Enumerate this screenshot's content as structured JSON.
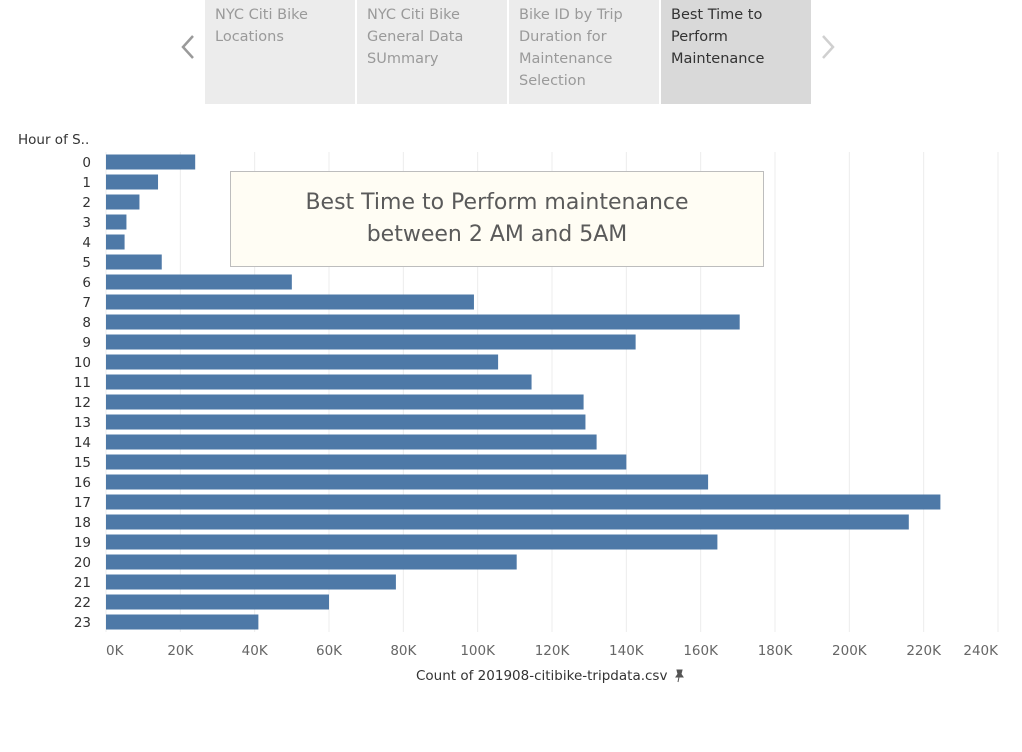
{
  "navigation": {
    "tabs": [
      {
        "label": "NYC Citi Bike Locations",
        "lines": [
          "NYC Citi Bike",
          "Locations"
        ],
        "active": false
      },
      {
        "label": "NYC Citi Bike General Data SUmmary",
        "lines": [
          "NYC Citi Bike",
          "General Data",
          "SUmmary"
        ],
        "active": false
      },
      {
        "label": "Bike ID by Trip Duration for Maintenance Selection",
        "lines": [
          "Bike ID by Trip",
          "Duration for",
          "Maintenance",
          "Selection"
        ],
        "active": false
      },
      {
        "label": "Best Time to Perform Maintenance",
        "lines": [
          "Best Time to",
          "Perform",
          "Maintenance"
        ],
        "active": true
      }
    ],
    "prev_icon": "chevron-left-icon",
    "next_icon": "chevron-right-icon"
  },
  "annotation": {
    "line1": "Best Time to Perform maintenance",
    "line2": "between 2 AM and 5AM"
  },
  "colors": {
    "bar": "#4e79a7",
    "grid": "#ececec",
    "tick_text": "#666666"
  },
  "chart_data": {
    "type": "bar",
    "orientation": "horizontal",
    "ylabel": "Hour of S..",
    "xlabel": "Count of 201908-citibike-tripdata.csv",
    "categories": [
      "0",
      "1",
      "2",
      "3",
      "4",
      "5",
      "6",
      "7",
      "8",
      "9",
      "10",
      "11",
      "12",
      "13",
      "14",
      "15",
      "16",
      "17",
      "18",
      "19",
      "20",
      "21",
      "22",
      "23"
    ],
    "values": [
      24000,
      14000,
      9000,
      5500,
      5000,
      15000,
      50000,
      99000,
      170500,
      142500,
      105500,
      114500,
      128500,
      129000,
      132000,
      140000,
      162000,
      224500,
      216000,
      164500,
      110500,
      78000,
      60000,
      41000
    ],
    "xlim": [
      0,
      240000
    ],
    "xticks": [
      "0K",
      "20K",
      "40K",
      "60K",
      "80K",
      "100K",
      "120K",
      "140K",
      "160K",
      "180K",
      "200K",
      "220K",
      "240K"
    ],
    "grid": true,
    "legend": "none"
  }
}
